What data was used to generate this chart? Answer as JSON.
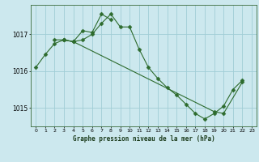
{
  "title": "Graphe pression niveau de la mer (hPa)",
  "bg_color": "#cce8ee",
  "grid_color": "#a0cdd6",
  "line_color": "#2d6b2d",
  "ylim": [
    1014.5,
    1017.8
  ],
  "yticks": [
    1015,
    1016,
    1017
  ],
  "xlim": [
    -0.5,
    23.5
  ],
  "xticks": [
    0,
    1,
    2,
    3,
    4,
    5,
    6,
    7,
    8,
    9,
    10,
    11,
    12,
    13,
    14,
    15,
    16,
    17,
    18,
    19,
    20,
    21,
    22,
    23
  ],
  "series1_x": [
    0,
    1,
    2,
    3,
    4,
    5,
    6,
    7,
    8,
    9,
    10,
    11,
    12,
    13,
    14,
    15,
    16,
    17,
    18,
    19,
    20,
    21,
    22
  ],
  "series1_y": [
    1016.1,
    1016.45,
    1016.75,
    1016.85,
    1016.8,
    1016.85,
    1017.0,
    1017.3,
    1017.55,
    1017.2,
    1017.2,
    1016.6,
    1016.1,
    1015.8,
    1015.55,
    1015.35,
    1015.1,
    1014.85,
    1014.7,
    1014.85,
    1015.05,
    1015.5,
    1015.75
  ],
  "series2_x": [
    2,
    3,
    4,
    5,
    6,
    7,
    8
  ],
  "series2_y": [
    1016.85,
    1016.85,
    1016.8,
    1017.1,
    1017.05,
    1017.55,
    1017.4
  ],
  "series3_x": [
    3,
    4,
    19,
    20,
    22
  ],
  "series3_y": [
    1016.85,
    1016.8,
    1014.9,
    1014.85,
    1015.7
  ],
  "markersize": 2.5
}
